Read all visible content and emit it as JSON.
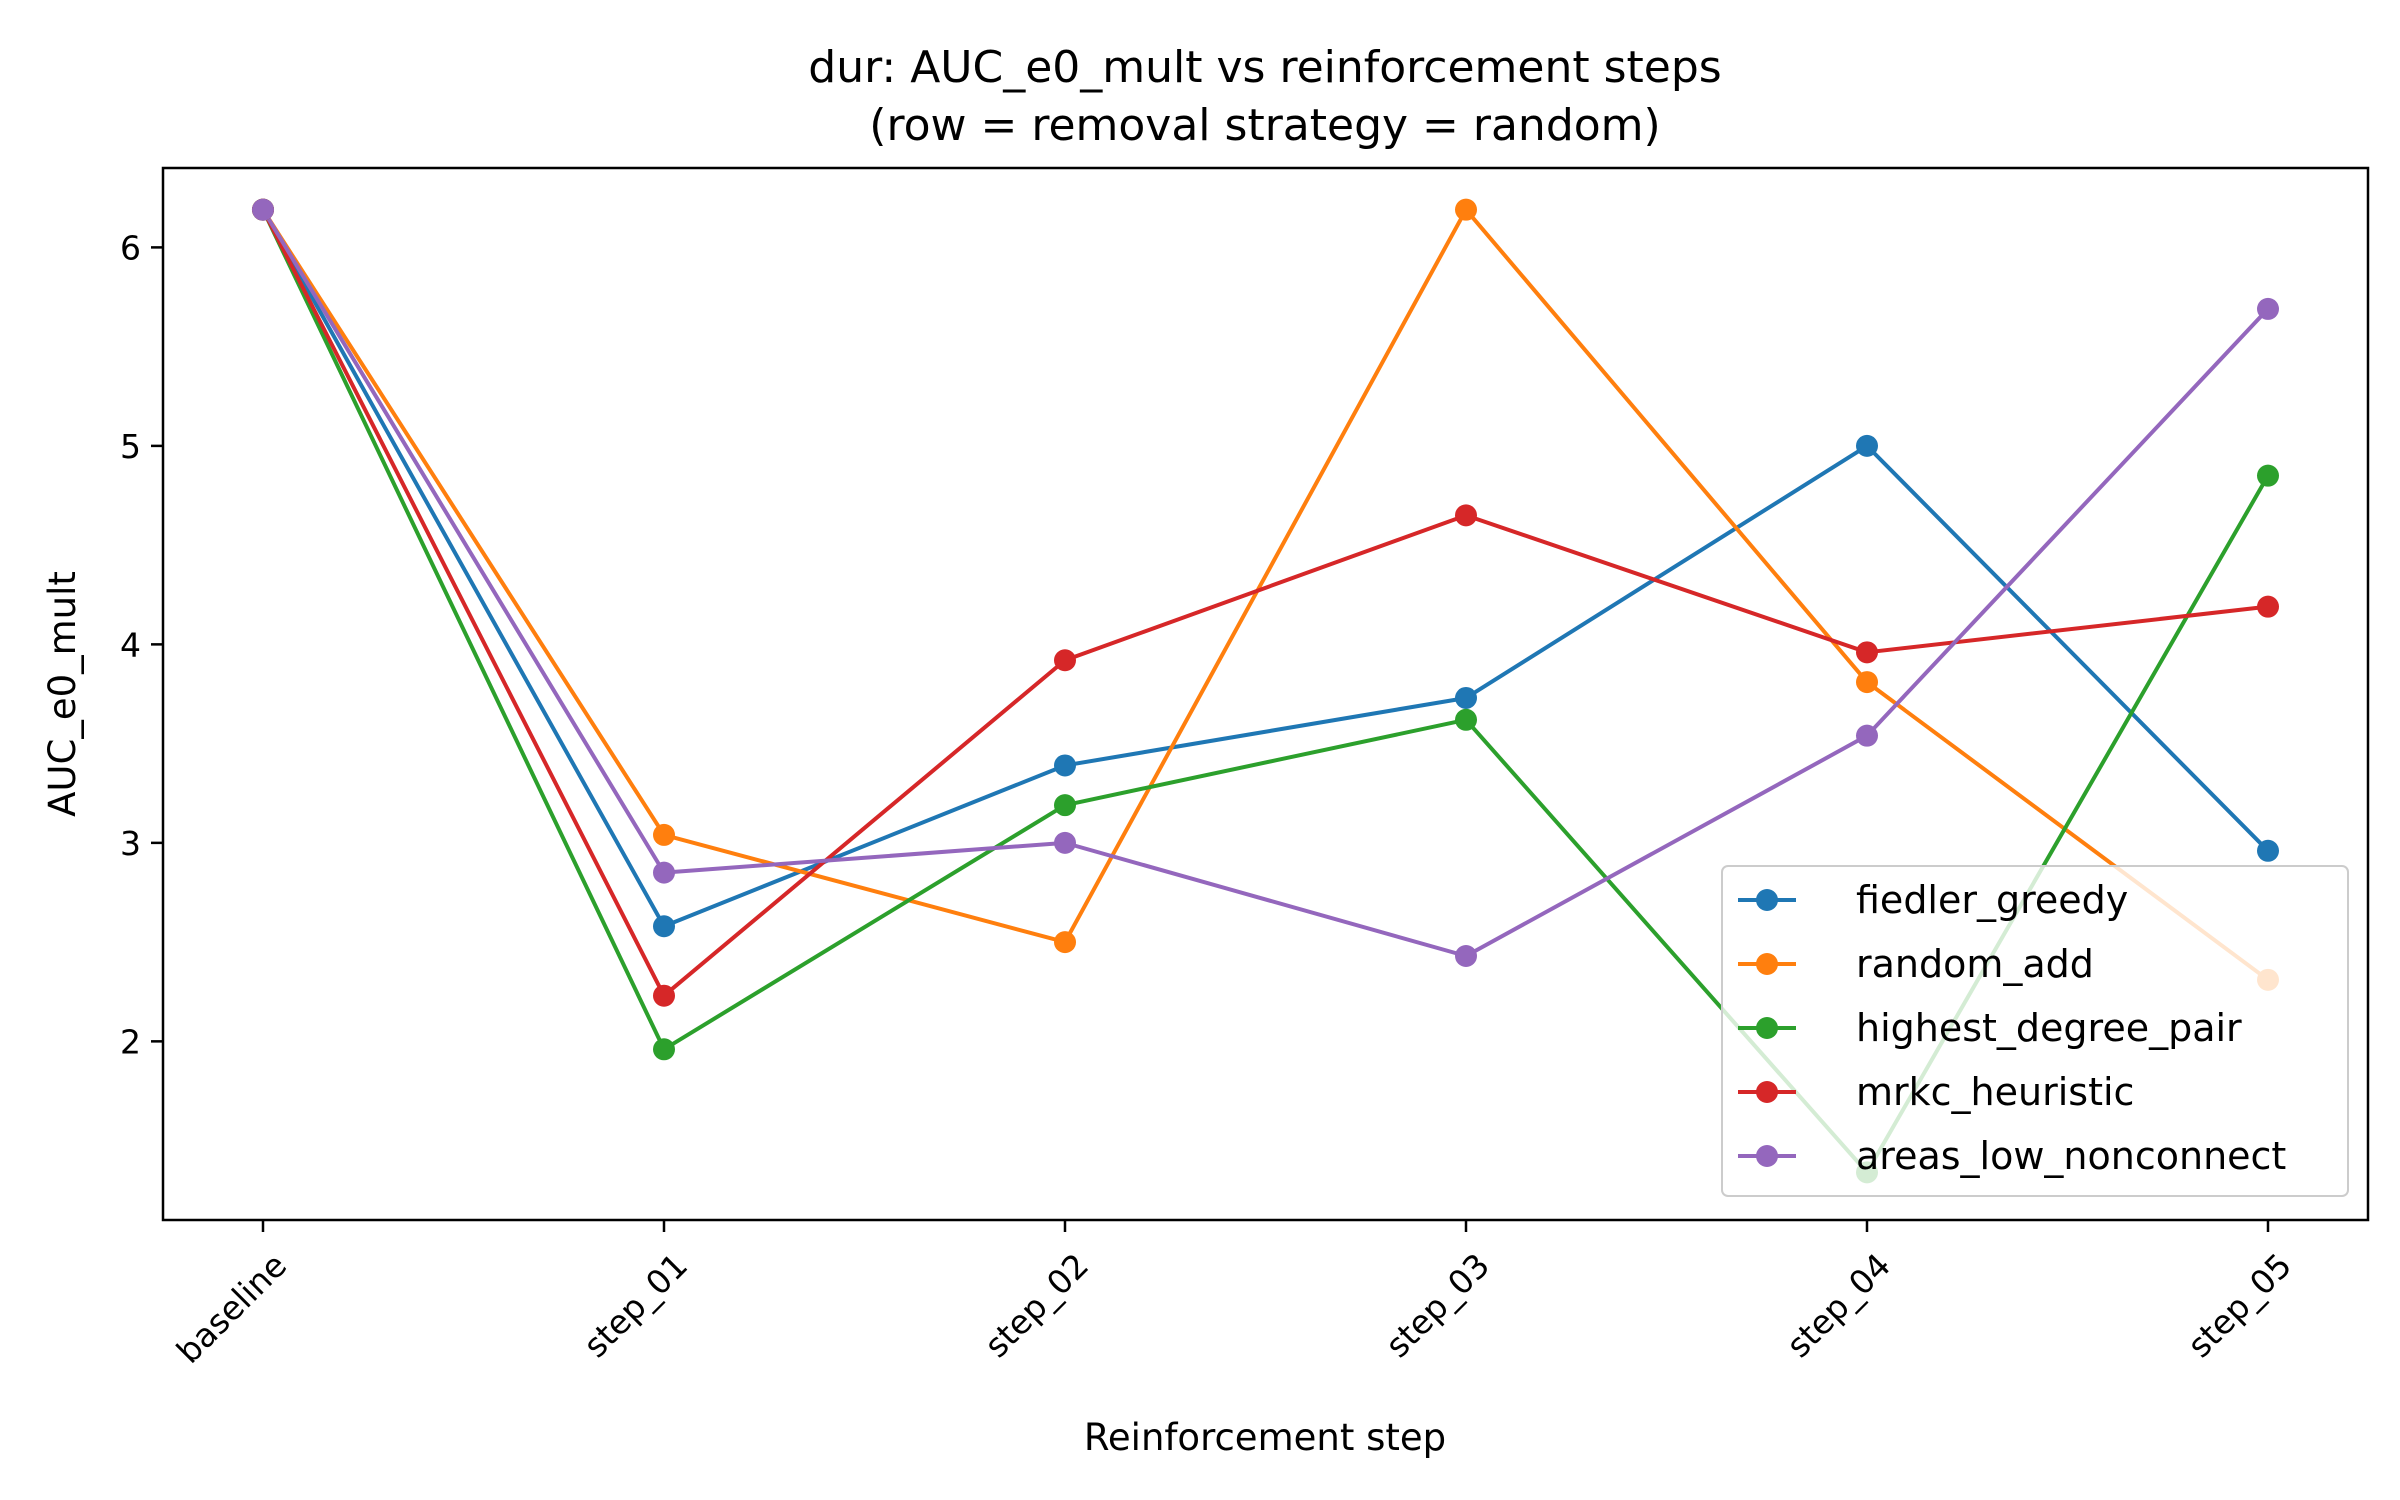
{
  "chart_data": {
    "type": "line",
    "title": "dur: AUC_e0_mult vs reinforcement steps",
    "subtitle": "(row = removal strategy = random)",
    "xlabel": "Reinforcement step",
    "ylabel": "AUC_e0_mult",
    "categories": [
      "baseline",
      "step_01",
      "step_02",
      "step_03",
      "step_04",
      "step_05"
    ],
    "ylim": [
      1.1,
      6.4
    ],
    "yticks": [
      2,
      3,
      4,
      5,
      6
    ],
    "grid": false,
    "legend_position": "lower-right",
    "series": [
      {
        "name": "fiedler_greedy",
        "color": "#1f77b4",
        "values": [
          6.19,
          2.58,
          3.39,
          3.73,
          5.0,
          2.96
        ]
      },
      {
        "name": "random_add",
        "color": "#ff7f0e",
        "values": [
          6.19,
          3.04,
          2.5,
          6.19,
          3.81,
          2.31
        ]
      },
      {
        "name": "highest_degree_pair",
        "color": "#2ca02c",
        "values": [
          6.19,
          1.96,
          3.19,
          3.62,
          1.34,
          4.85
        ]
      },
      {
        "name": "mrkc_heuristic",
        "color": "#d62728",
        "values": [
          6.19,
          2.23,
          3.92,
          4.65,
          3.96,
          4.19
        ]
      },
      {
        "name": "areas_low_nonconnect",
        "color": "#9467bd",
        "values": [
          6.19,
          2.85,
          3.0,
          2.43,
          3.54,
          5.69
        ]
      }
    ]
  }
}
